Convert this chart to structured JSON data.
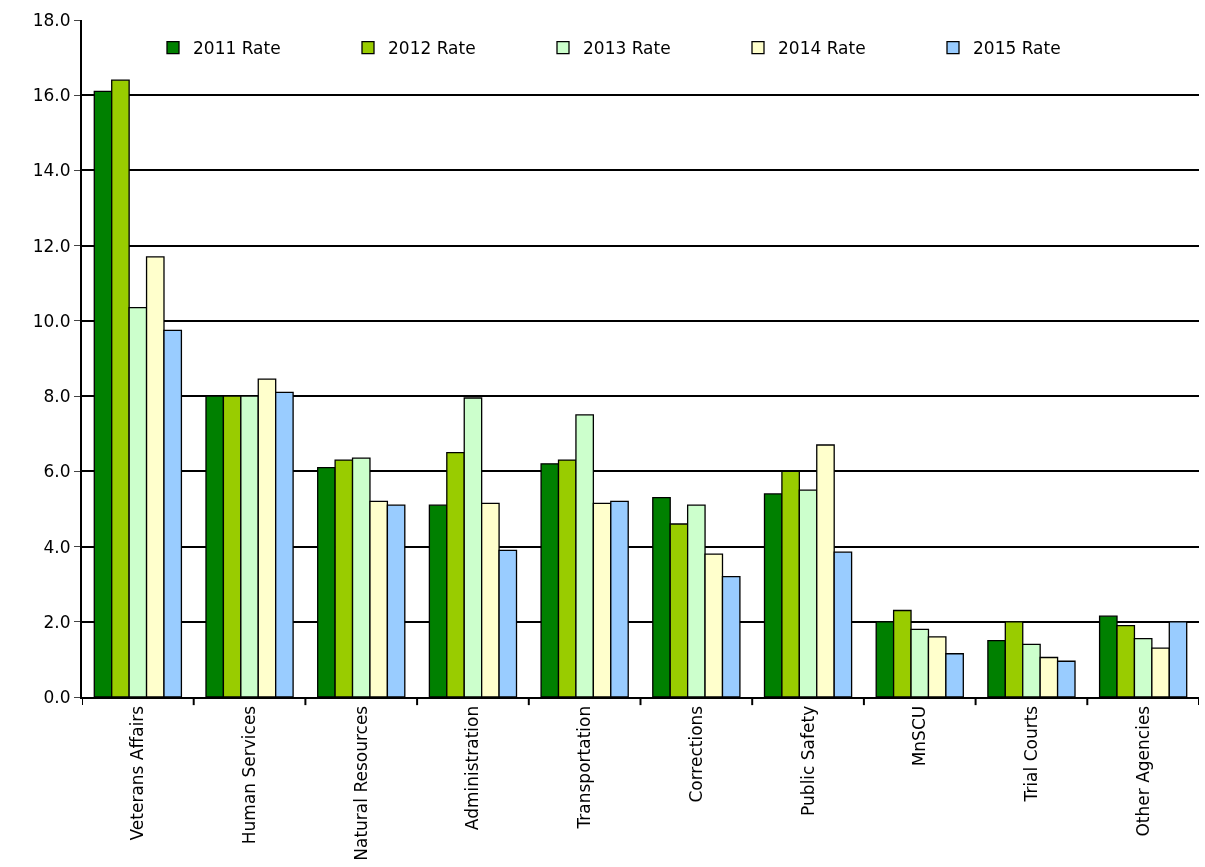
{
  "chart_data": {
    "type": "bar",
    "categories": [
      "Veterans Affairs",
      "Human Services",
      "Natural Resources",
      "Administration",
      "Transportation",
      "Corrections",
      "Public Safety",
      "MnSCU",
      "Trial Courts",
      "Other Agencies"
    ],
    "series": [
      {
        "name": "2011 Rate",
        "color": "#008000",
        "values": [
          16.1,
          8.0,
          6.1,
          5.1,
          6.2,
          5.3,
          5.4,
          2.0,
          1.5,
          2.15
        ]
      },
      {
        "name": "2012 Rate",
        "color": "#99cc00",
        "values": [
          16.4,
          8.0,
          6.3,
          6.5,
          6.3,
          4.6,
          6.0,
          2.3,
          2.0,
          1.9
        ]
      },
      {
        "name": "2013 Rate",
        "color": "#ccffcc",
        "values": [
          10.35,
          8.0,
          6.35,
          7.95,
          7.5,
          5.1,
          5.5,
          1.8,
          1.4,
          1.55
        ]
      },
      {
        "name": "2014 Rate",
        "color": "#ffffcc",
        "values": [
          11.7,
          8.45,
          5.2,
          5.15,
          5.15,
          3.8,
          6.7,
          1.6,
          1.05,
          1.3
        ]
      },
      {
        "name": "2015 Rate",
        "color": "#99ccff",
        "values": [
          9.75,
          8.1,
          5.1,
          3.9,
          5.2,
          3.2,
          3.85,
          1.15,
          0.95,
          2.0
        ]
      }
    ],
    "ylim": [
      0,
      18
    ],
    "yticks": [
      {
        "value": 0,
        "label": "0.0"
      },
      {
        "value": 2,
        "label": "2.0"
      },
      {
        "value": 4,
        "label": "4.0"
      },
      {
        "value": 6,
        "label": "6.0"
      },
      {
        "value": 8,
        "label": "8.0"
      },
      {
        "value": 10,
        "label": "10.0"
      },
      {
        "value": 12,
        "label": "12.0"
      },
      {
        "value": 14,
        "label": "14.0"
      },
      {
        "value": 16,
        "label": "16.0"
      },
      {
        "value": 18,
        "label": "18.0"
      }
    ],
    "grid": "y",
    "legend": "top"
  }
}
